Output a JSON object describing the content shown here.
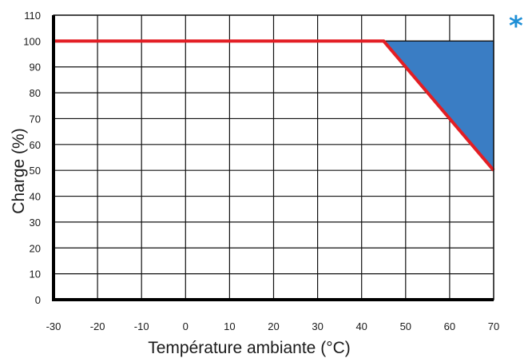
{
  "chart_data": {
    "type": "area",
    "xlabel": "Température ambiante (°C)",
    "ylabel": "Charge (%)",
    "xlim": [
      -30,
      70
    ],
    "ylim": [
      0,
      110
    ],
    "x_ticks": [
      -30,
      -20,
      -10,
      0,
      10,
      20,
      30,
      40,
      50,
      60,
      70
    ],
    "y_ticks": [
      0,
      10,
      20,
      30,
      40,
      50,
      60,
      70,
      80,
      90,
      100,
      110
    ],
    "grid": true,
    "series": [
      {
        "type": "line",
        "color": "#e31e24",
        "points": [
          [
            -30,
            100
          ],
          [
            45,
            100
          ],
          [
            70,
            50
          ]
        ]
      },
      {
        "type": "area",
        "color": "#3a7dc4",
        "points": [
          [
            45,
            100
          ],
          [
            70,
            100
          ],
          [
            70,
            50
          ]
        ]
      }
    ],
    "annotation": "*",
    "annotation_color": "#1e8fd6"
  }
}
